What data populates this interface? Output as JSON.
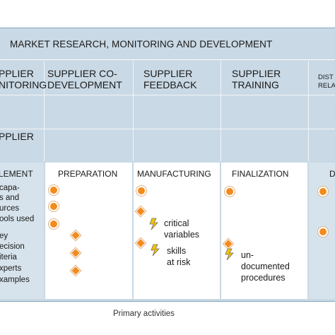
{
  "header": {
    "title": "MARKET RESEARCH, MONITORING AND DEVELOPMENT"
  },
  "columns": [
    {
      "line1": "PPLIER",
      "line2": "NITORING"
    },
    {
      "line1": "SUPPLIER CO-",
      "line2": "DEVELOPMENT"
    },
    {
      "line1": "SUPPLIER",
      "line2": "FEEDBACK"
    },
    {
      "line1": "SUPPLIER",
      "line2": "TRAINING"
    },
    {
      "line1": "DIST",
      "line2": "RELA"
    }
  ],
  "row_label": {
    "line1": "PPLIER"
  },
  "stages": [
    {
      "title": "LEMENT",
      "items": [
        "capa-",
        "s and",
        "urces",
        "ools used",
        "ey",
        "ecision",
        "iteria",
        "xperts",
        "xamples"
      ]
    },
    {
      "title": "PREPARATION"
    },
    {
      "title": "MANUFACTURING",
      "items": [
        "critical",
        "variables",
        "skills",
        "at risk"
      ]
    },
    {
      "title": "FINALIZATION",
      "items": [
        "un-",
        "documented",
        "procedures"
      ]
    },
    {
      "title": "D"
    }
  ],
  "footer": {
    "label": "Primary activities"
  },
  "colors": {
    "band": "#c9d9e5",
    "marker": "#f28b1e",
    "accent_blue": "#d6e3ec"
  },
  "icons": [
    "circle-marker-icon",
    "diamond-marker-icon",
    "lightning-bolt-icon"
  ]
}
